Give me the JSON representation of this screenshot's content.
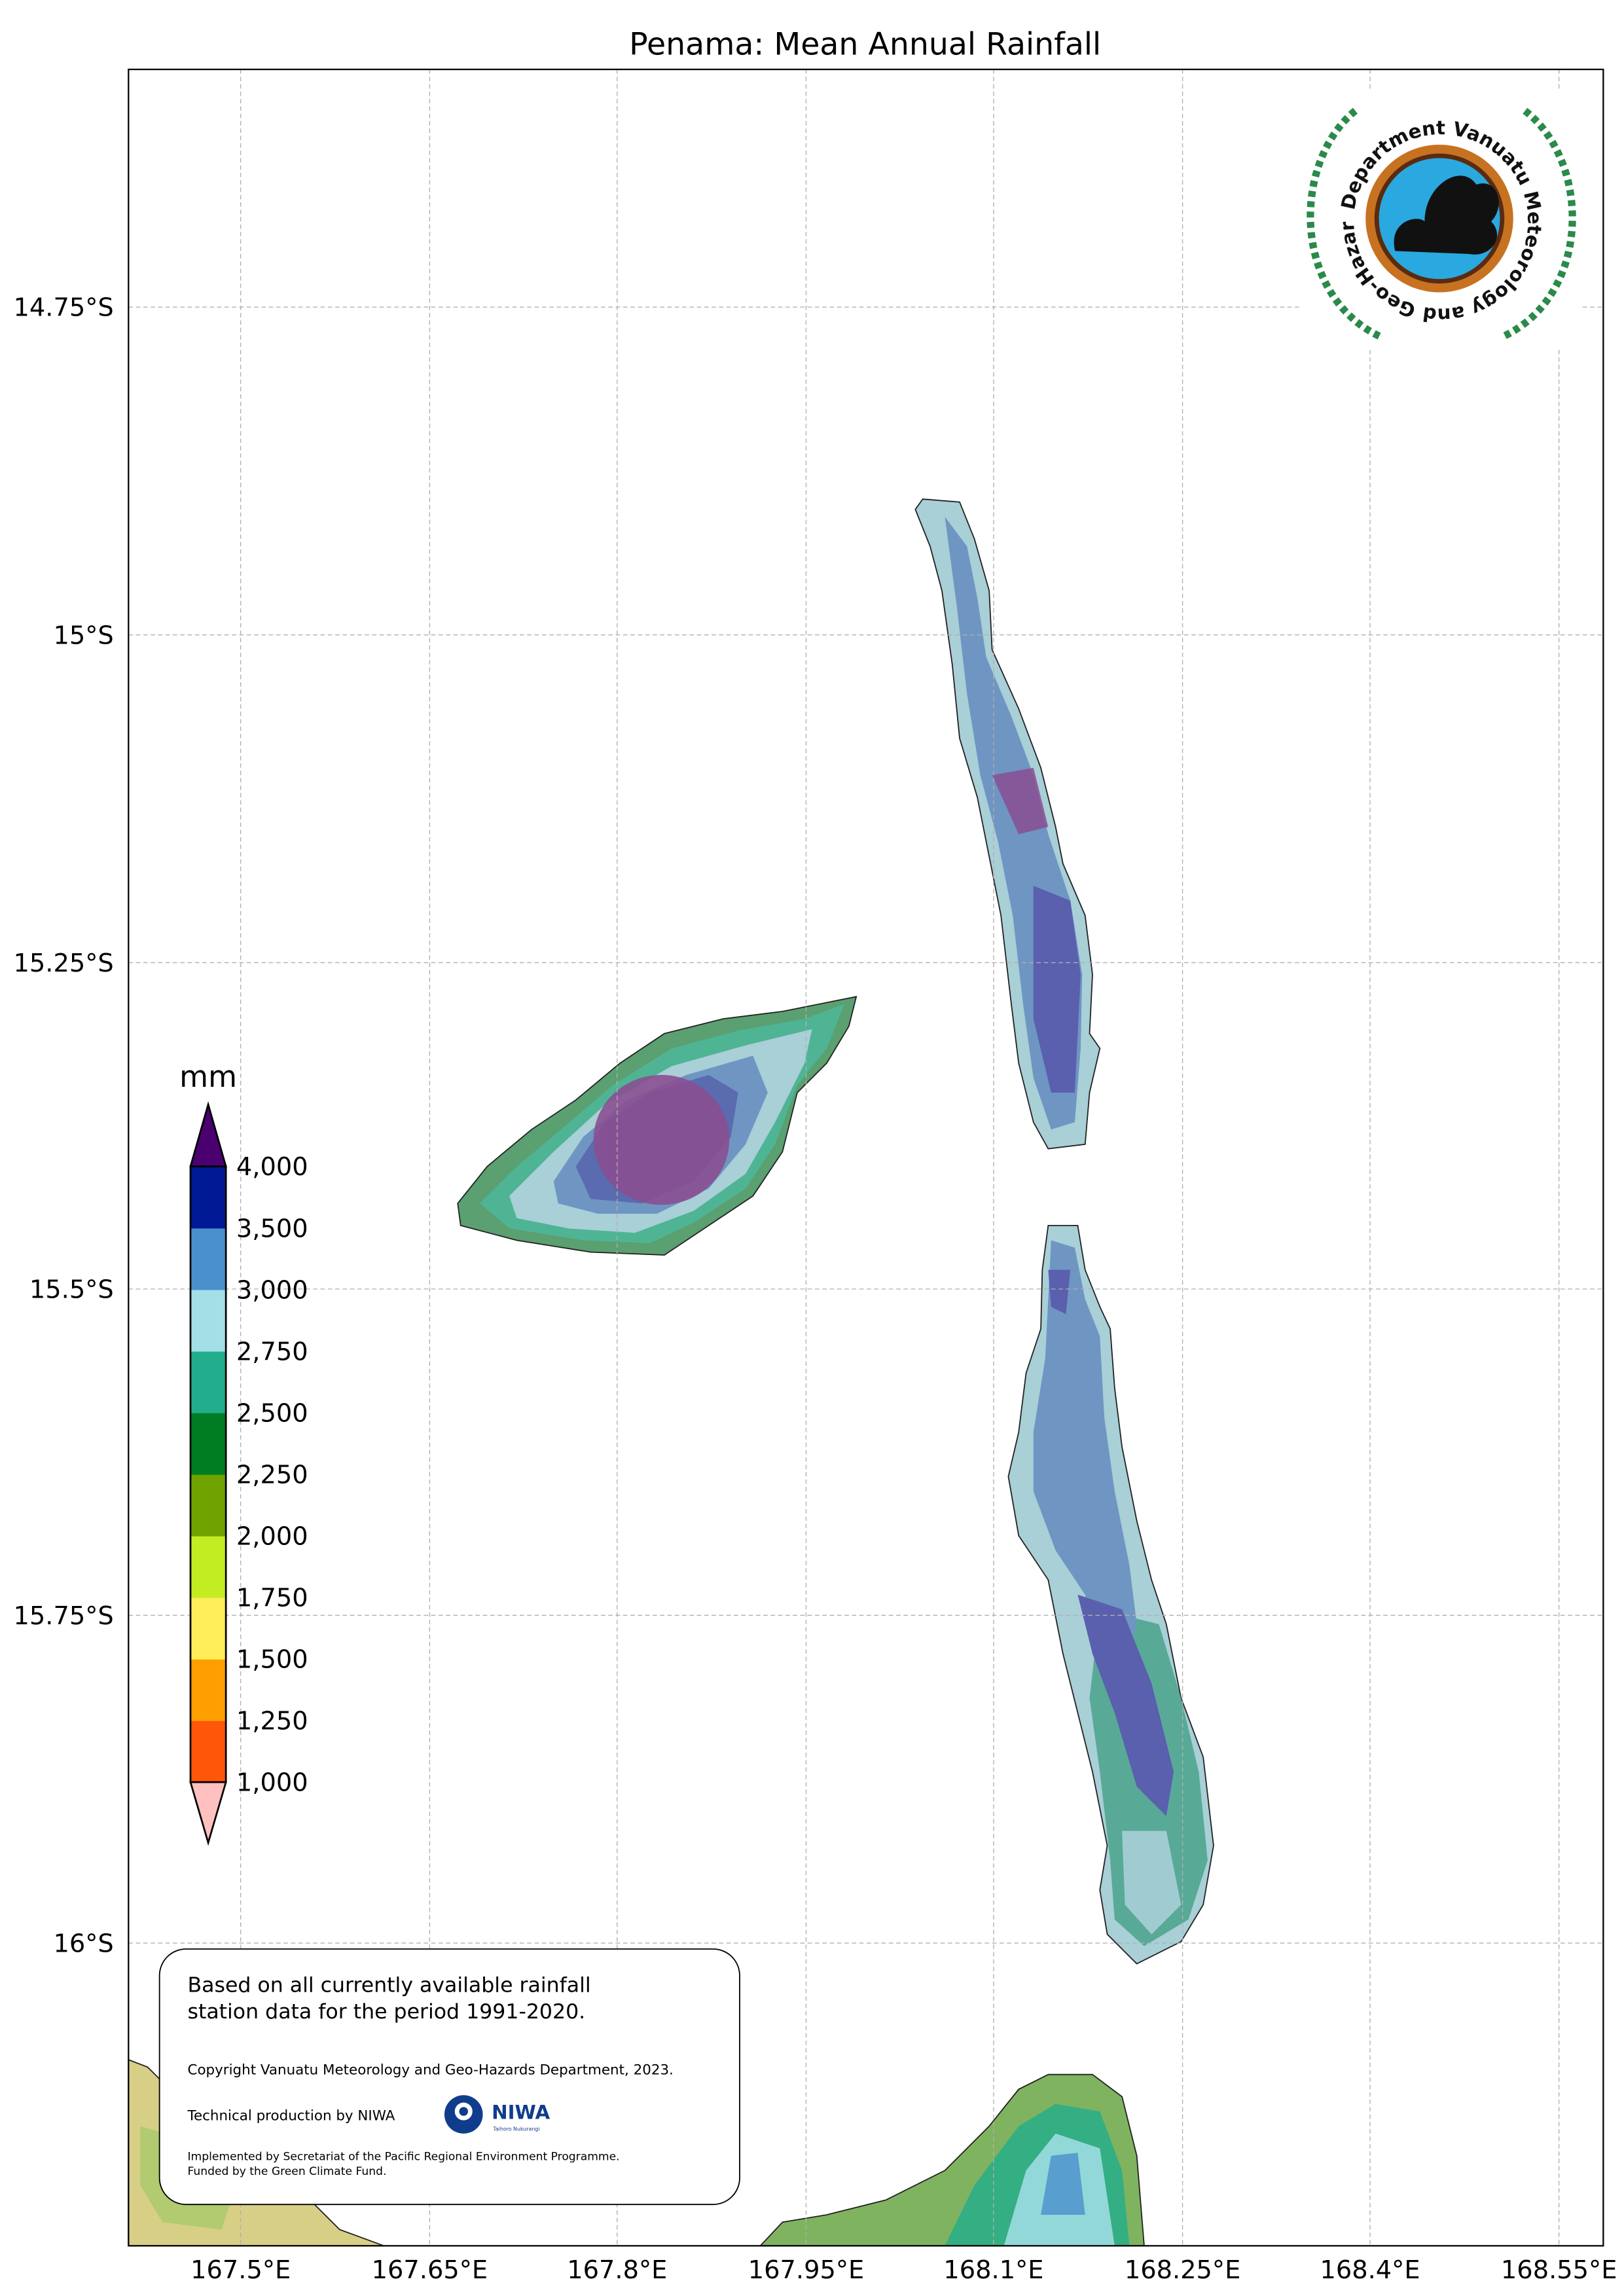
{
  "title": "Penama: Mean Annual Rainfall",
  "axes": {
    "x_ticks": [
      "167.5°E",
      "167.65°E",
      "167.8°E",
      "167.95°E",
      "168.1°E",
      "168.25°E",
      "168.4°E",
      "168.55°E"
    ],
    "y_ticks": [
      "14.75°S",
      "15°S",
      "15.25°S",
      "15.5°S",
      "15.75°S",
      "16°S"
    ]
  },
  "colorbar": {
    "unit": "mm",
    "labels": [
      "4,000",
      "3,500",
      "3,000",
      "2,750",
      "2,500",
      "2,250",
      "2,000",
      "1,750",
      "1,500",
      "1,250",
      "1,000"
    ],
    "bounds": [
      1000,
      1250,
      1500,
      1750,
      2000,
      2250,
      2500,
      2750,
      3000,
      3500,
      4000
    ],
    "colors": [
      "#ff560a",
      "#ff9e00",
      "#ffee5a",
      "#c2ed23",
      "#6ea300",
      "#007d23",
      "#22ad8c",
      "#a4dfe8",
      "#4a90cc",
      "#001a96"
    ],
    "over_color": "#4b0070",
    "under_color": "#ffc0c0"
  },
  "logo": {
    "text": "Department Vanuatu Meteorology and Geo-Hazards"
  },
  "info_box": {
    "line1": "Based on all currently available rainfall",
    "line2": "station data for the period 1991-2020.",
    "copyright": "Copyright Vanuatu Meteorology and Geo-Hazards Department, 2023.",
    "production": "Technical production by NIWA",
    "niwa_logo": "NIWA",
    "niwa_sub": "Taihoro Nukurangi",
    "implemented": "Implemented by Secretariat of the Pacific Regional Environment Programme.",
    "funded": "Funded by the Green Climate Fund."
  }
}
